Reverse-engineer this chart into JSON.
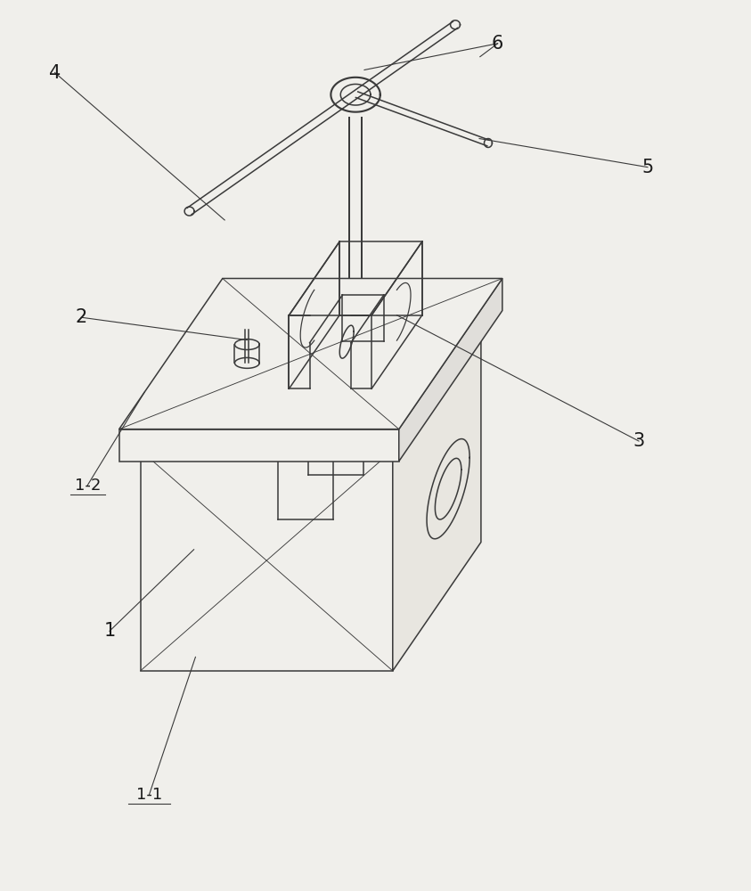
{
  "bg_color": "#f0efeb",
  "line_color": "#3a3a3a",
  "lw": 1.1,
  "thin_lw": 0.65,
  "label_fs": 15,
  "label_fs_sub": 13
}
